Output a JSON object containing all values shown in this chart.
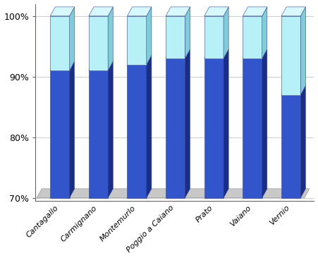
{
  "categories": [
    "Cantagallo",
    "Carmignano",
    "Montemurlo",
    "Poggio a Caiano",
    "Prato",
    "Vaiano",
    "Vernio"
  ],
  "si_values": [
    91,
    91,
    92,
    93,
    93,
    93,
    87
  ],
  "no_values": [
    9,
    9,
    8,
    7,
    7,
    7,
    13
  ],
  "ylim": [
    70,
    100
  ],
  "yticks": [
    70,
    80,
    90,
    100
  ],
  "yticklabels": [
    "70%",
    "80%",
    "90%",
    "100%"
  ],
  "si_color_front": "#3355cc",
  "si_color_side": "#1a2e88",
  "si_color_top": "#5577dd",
  "no_color_front": "#b8f0f8",
  "no_color_side": "#80ccd8",
  "no_color_top": "#d8f8ff",
  "floor_color": "#c8c8c8",
  "floor_edge": "#999999",
  "background_color": "#ffffff",
  "grid_color": "#cccccc",
  "bar_width": 0.5,
  "ox": 0.13,
  "oy": 1.5,
  "xlabel_fontsize": 8,
  "ylabel_fontsize": 9
}
